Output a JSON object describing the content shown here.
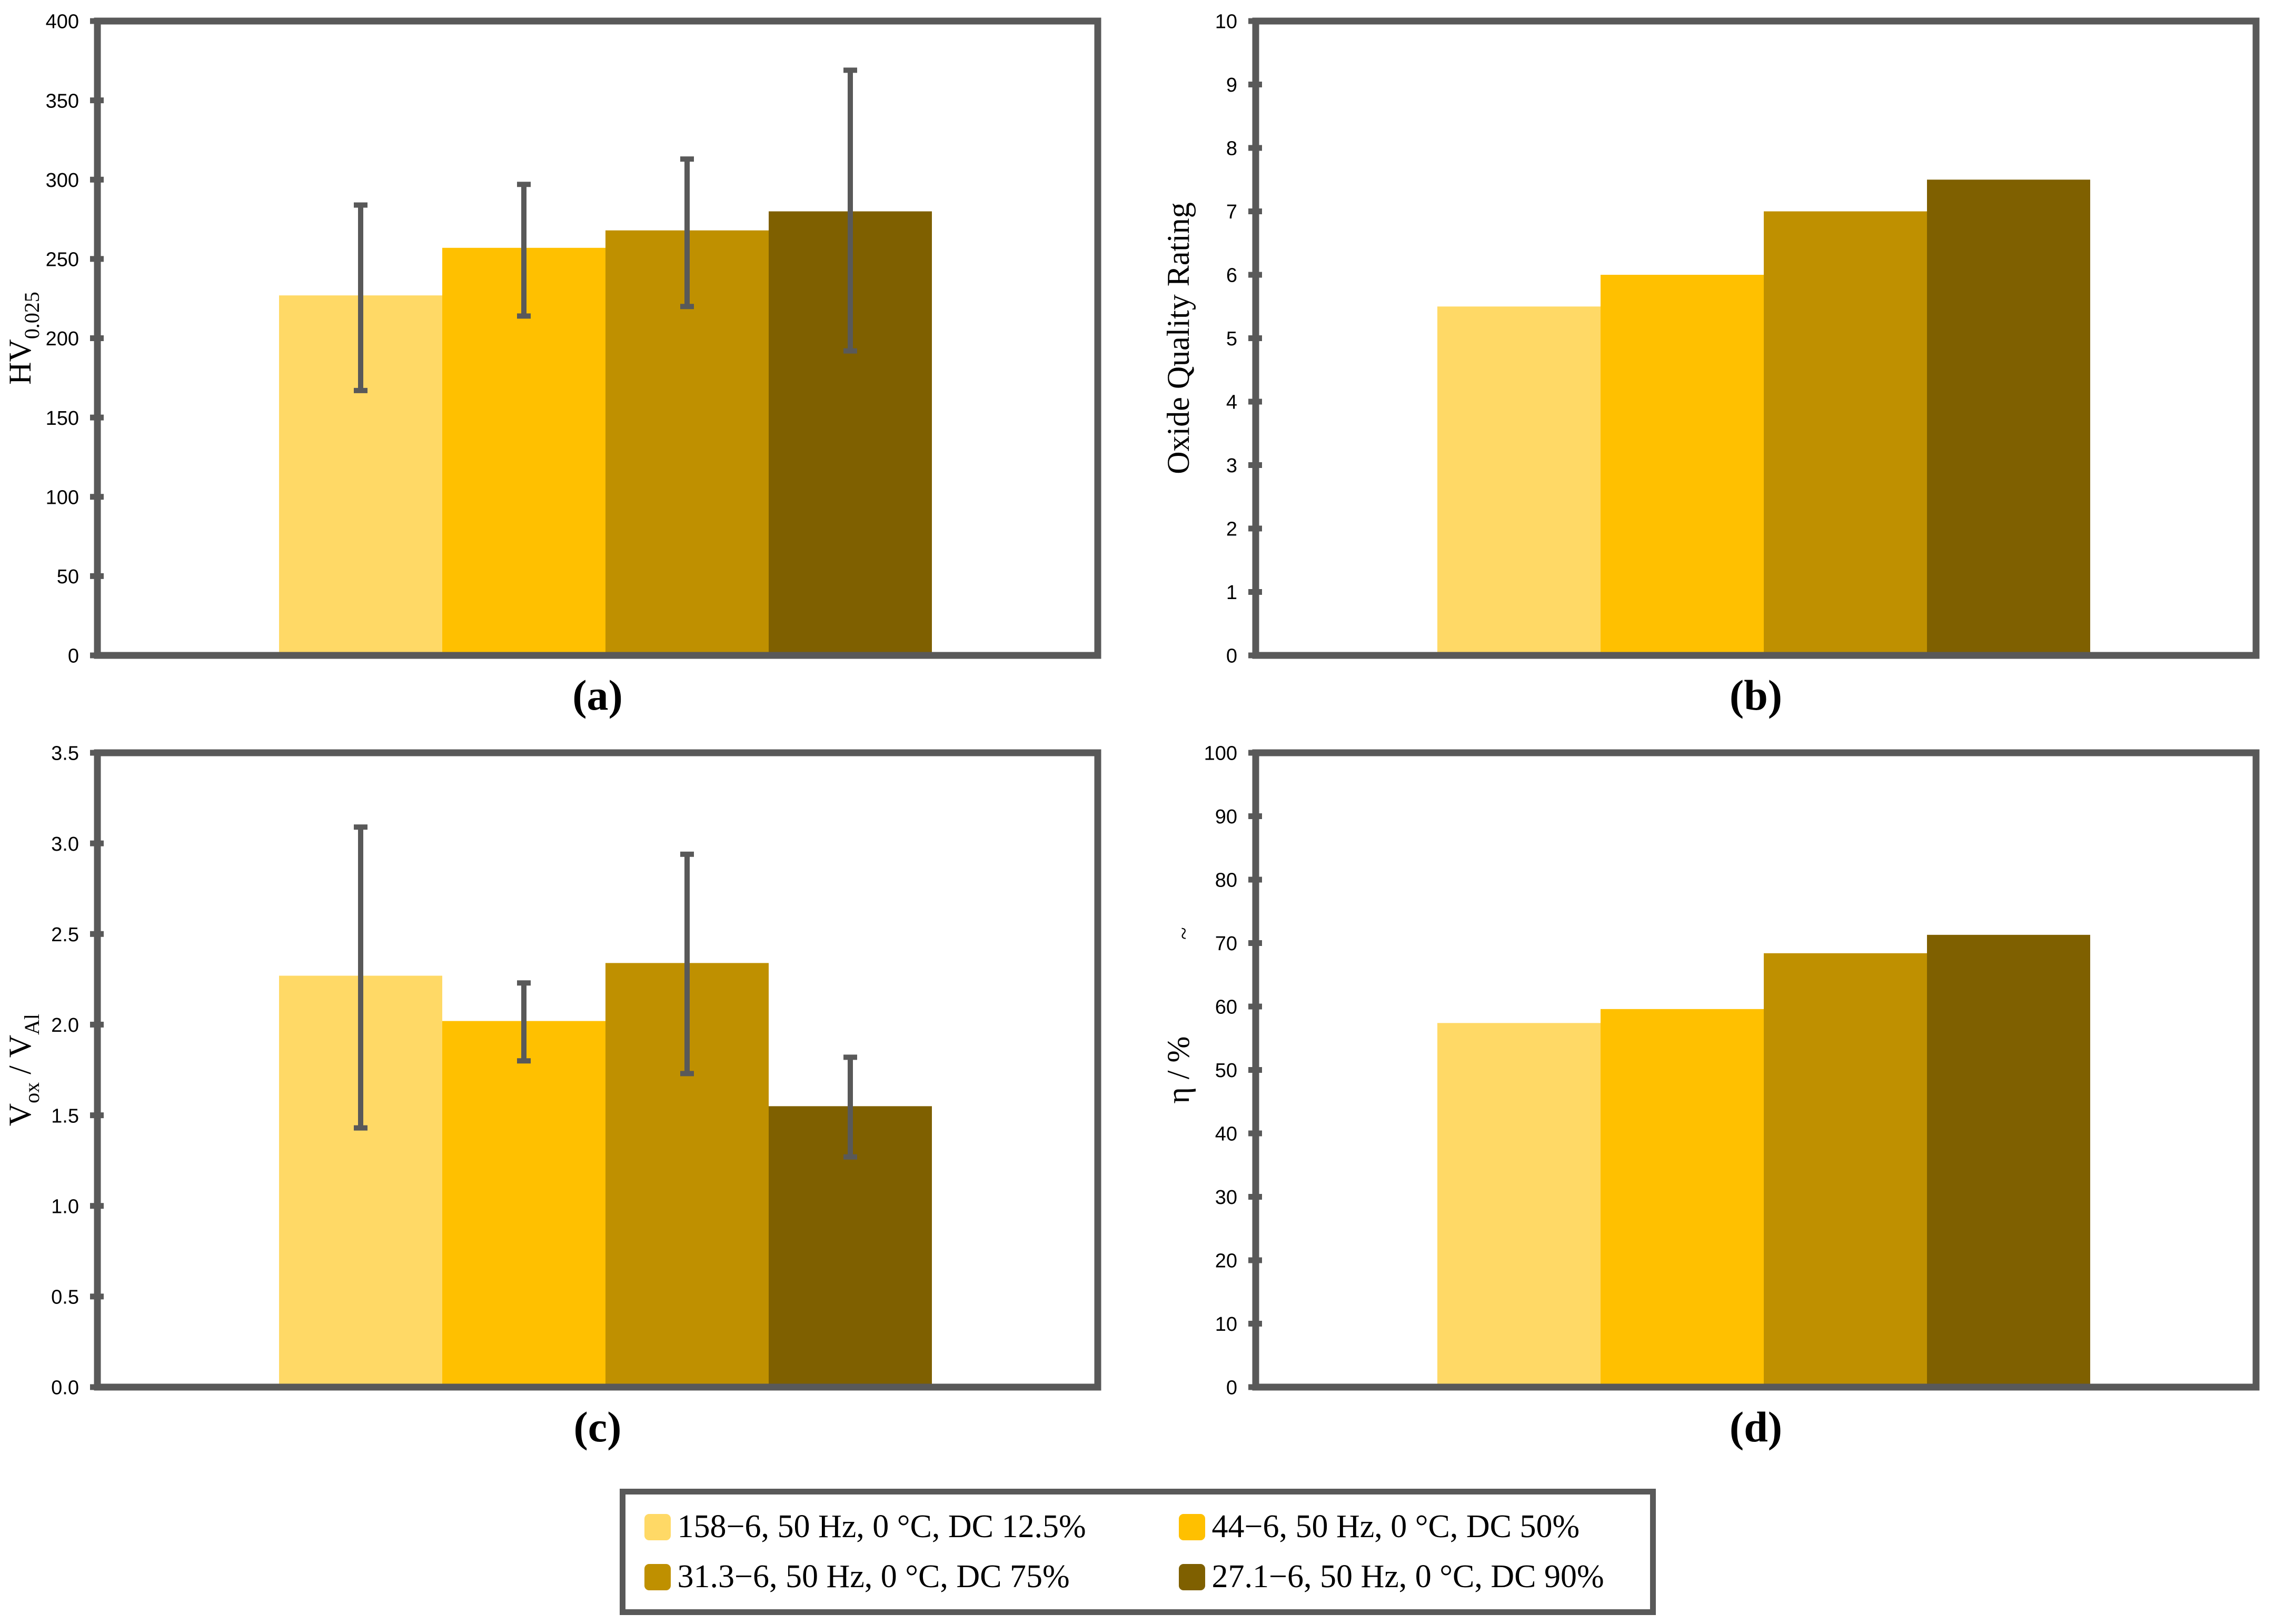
{
  "figure": {
    "background": "#ffffff",
    "frame_color": "#595959",
    "error_bar_color": "#595959",
    "series_colors": [
      "#FFD966",
      "#FFC000",
      "#BF9000",
      "#7F6000"
    ]
  },
  "legend": {
    "items": [
      {
        "label": "158−6, 50 Hz, 0 °C, DC 12.5%",
        "color": "#FFD966"
      },
      {
        "label": "44−6, 50 Hz, 0 °C, DC 50%",
        "color": "#FFC000"
      },
      {
        "label": "31.3−6, 50 Hz, 0 °C, DC 75%",
        "color": "#BF9000"
      },
      {
        "label": "27.1−6, 50 Hz, 0 °C, DC 90%",
        "color": "#7F6000"
      }
    ]
  },
  "chart_data": [
    {
      "id": "a",
      "type": "bar",
      "caption": "(a)",
      "ylabel": [
        {
          "text": "HV"
        },
        {
          "text": "0.025",
          "sub": true
        }
      ],
      "ylabel_plain": "HV0.025",
      "ylim": [
        0,
        400
      ],
      "ytick_step": 50,
      "ytick_decimals": 0,
      "grid": false,
      "categories": [
        "158−6, 50 Hz, 0 °C, DC 12.5%",
        "44−6, 50 Hz, 0 °C, DC 50%",
        "31.3−6, 50 Hz, 0 °C, DC 75%",
        "27.1−6, 50 Hz, 0 °C, DC 90%"
      ],
      "values": [
        227,
        257,
        268,
        280
      ],
      "error_high": [
        284,
        297,
        313,
        369
      ],
      "error_low": [
        167,
        214,
        220,
        192
      ]
    },
    {
      "id": "b",
      "type": "bar",
      "caption": "(b)",
      "ylabel": [
        {
          "text": "Oxide Quality Rating"
        }
      ],
      "ylabel_plain": "Oxide Quality Rating",
      "ylim": [
        0,
        10
      ],
      "ytick_step": 1,
      "ytick_decimals": 0,
      "grid": false,
      "categories": [
        "158−6, 50 Hz, 0 °C, DC 12.5%",
        "44−6, 50 Hz, 0 °C, DC 50%",
        "31.3−6, 50 Hz, 0 °C, DC 75%",
        "27.1−6, 50 Hz, 0 °C, DC 90%"
      ],
      "values": [
        5.5,
        6.0,
        7.0,
        7.5
      ]
    },
    {
      "id": "c",
      "type": "bar",
      "caption": "(c)",
      "ylabel": [
        {
          "text": "V"
        },
        {
          "text": "ox",
          "sub": true
        },
        {
          "text": " / "
        },
        {
          "text": "V"
        },
        {
          "text": "Al",
          "sub": true
        }
      ],
      "ylabel_plain": "Vox / VAl",
      "ylim": [
        0,
        3.5
      ],
      "ytick_step": 0.5,
      "ytick_decimals": 1,
      "grid": false,
      "categories": [
        "158−6, 50 Hz, 0 °C, DC 12.5%",
        "44−6, 50 Hz, 0 °C, DC 50%",
        "31.3−6, 50 Hz, 0 °C, DC 75%",
        "27.1−6, 50 Hz, 0 °C, DC 90%"
      ],
      "values": [
        2.27,
        2.02,
        2.34,
        1.55
      ],
      "error_high": [
        3.09,
        2.23,
        2.94,
        1.82
      ],
      "error_low": [
        1.43,
        1.8,
        1.73,
        1.27
      ]
    },
    {
      "id": "d",
      "type": "bar",
      "caption": "(d)",
      "ylabel": [
        {
          "text": "η / %"
        }
      ],
      "ylabel_plain": "η / %",
      "ylim": [
        0,
        100
      ],
      "ytick_step": 10,
      "ytick_decimals": 0,
      "grid": false,
      "stray_mark": {
        "text": "~",
        "x": 63,
        "y": 395
      },
      "categories": [
        "158−6, 50 Hz, 0 °C, DC 12.5%",
        "44−6, 50 Hz, 0 °C, DC 50%",
        "31.3−6, 50 Hz, 0 °C, DC 75%",
        "27.1−6, 50 Hz, 0 °C, DC 90%"
      ],
      "values": [
        57.4,
        59.6,
        68.4,
        71.3
      ]
    }
  ]
}
